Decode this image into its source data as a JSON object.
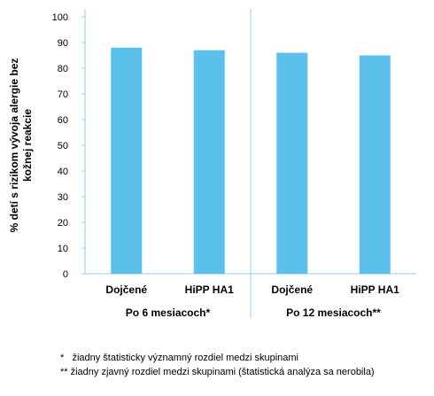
{
  "chart_data": {
    "type": "bar",
    "ylabel_lines": [
      "% detí s rizikom vývoja alergie bez",
      "kožnej reakcie"
    ],
    "ylim": [
      0,
      100
    ],
    "yticks": [
      0,
      10,
      20,
      30,
      40,
      50,
      60,
      70,
      80,
      90,
      100
    ],
    "grid": false,
    "bar_color": "#5bc0eb",
    "axis_color": "#8fd0f0",
    "categories": [
      "Dojčené",
      "HiPP HA1",
      "Dojčené",
      "HiPP HA1"
    ],
    "values": [
      88,
      87,
      86,
      85
    ],
    "groups": [
      {
        "label": "Po 6 mesiacoch*",
        "categories": [
          0,
          1
        ]
      },
      {
        "label": "Po 12 mesiacoch**",
        "categories": [
          2,
          3
        ]
      }
    ]
  },
  "footnotes": [
    "*   žiadny štatisticky významný rozdiel medzi skupinami",
    "** žiadny zjavný rozdiel medzi skupinami (štatistická analýza sa nerobila)"
  ]
}
